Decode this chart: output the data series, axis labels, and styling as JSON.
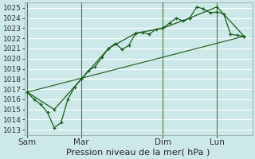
{
  "xlabel": "Pression niveau de la mer( hPa )",
  "ylim": [
    1012.5,
    1025.5
  ],
  "yticks": [
    1013,
    1014,
    1015,
    1016,
    1017,
    1018,
    1019,
    1020,
    1021,
    1022,
    1023,
    1024,
    1025
  ],
  "bg_color": "#cce8e8",
  "grid_color": "#ffffff",
  "line_color": "#1a5c1a",
  "vline_color": "#4a7a4a",
  "xtick_labels": [
    "Sam",
    "Mar",
    "Dim",
    "Lun"
  ],
  "xtick_positions": [
    0,
    2,
    5,
    7
  ],
  "xlim": [
    -0.1,
    8.3
  ],
  "line1_x": [
    0,
    0.25,
    0.5,
    0.75,
    1.0,
    1.25,
    1.5,
    1.75,
    2.0,
    2.25,
    2.5,
    2.75,
    3.0,
    3.25,
    3.5,
    3.75,
    4.0,
    4.25,
    4.5,
    4.75,
    5.0,
    5.25,
    5.5,
    5.75,
    6.0,
    6.25,
    6.5,
    6.75,
    7.0,
    7.25,
    7.5,
    7.75,
    8.0
  ],
  "line1_y": [
    1016.7,
    1016.0,
    1015.5,
    1014.7,
    1013.2,
    1013.7,
    1016.0,
    1017.2,
    1018.0,
    1018.8,
    1019.2,
    1020.1,
    1021.0,
    1021.5,
    1020.9,
    1021.3,
    1022.5,
    1022.6,
    1022.4,
    1022.9,
    1023.0,
    1023.5,
    1024.0,
    1023.7,
    1024.0,
    1025.1,
    1024.9,
    1024.5,
    1024.6,
    1024.4,
    1022.4,
    1022.3,
    1022.2
  ],
  "line2_x": [
    0,
    1.0,
    2.0,
    3.0,
    4.0,
    5.0,
    6.0,
    7.0,
    8.0
  ],
  "line2_y": [
    1016.7,
    1015.0,
    1018.0,
    1021.0,
    1022.5,
    1023.0,
    1024.0,
    1025.1,
    1022.2
  ],
  "line3_x": [
    0,
    8.0
  ],
  "line3_y": [
    1016.7,
    1022.2
  ],
  "vline_positions": [
    0,
    2,
    5,
    7
  ],
  "ylabel_fontsize": 6.5,
  "xlabel_fontsize": 8.0,
  "xtick_fontsize": 7.5
}
